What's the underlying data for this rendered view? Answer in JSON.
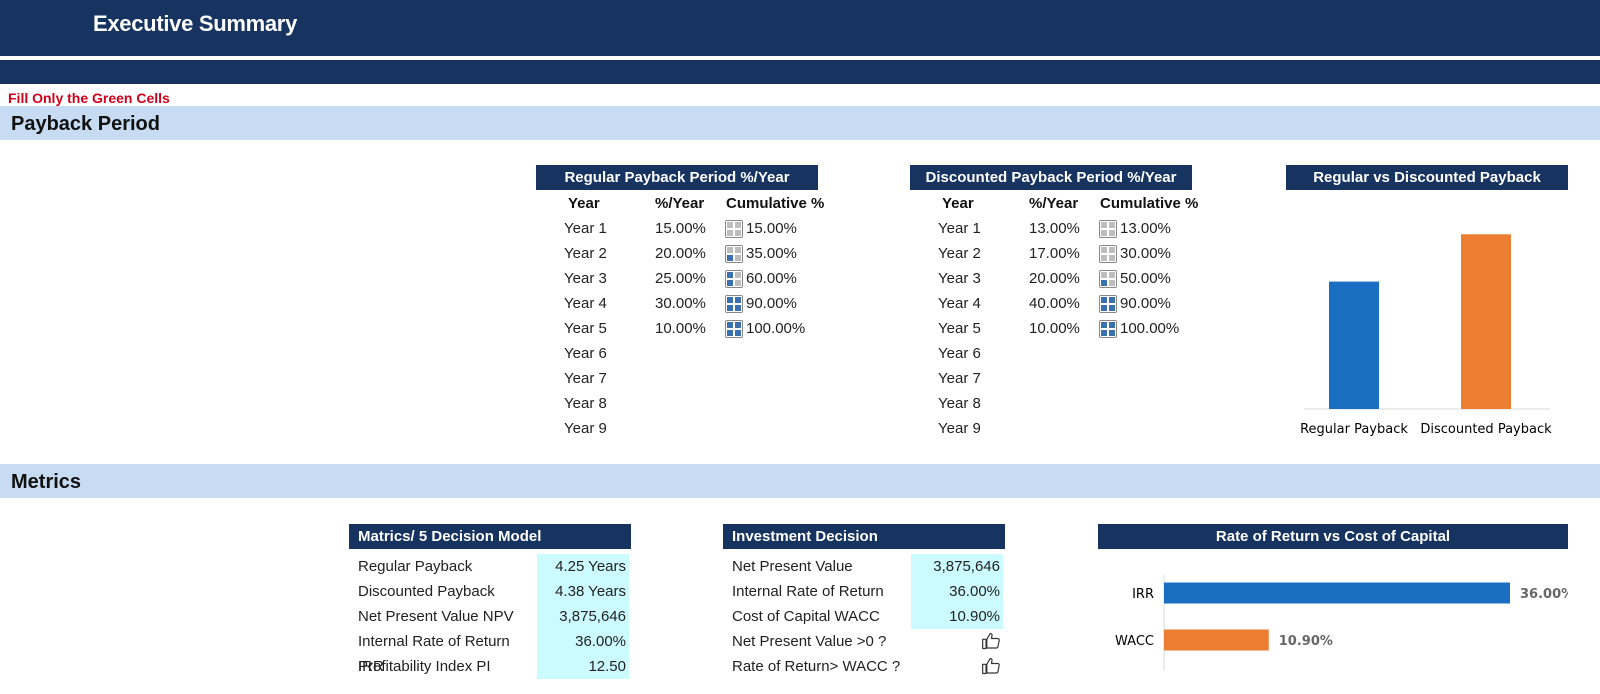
{
  "header": {
    "title": "Executive Summary",
    "fill_note": "Fill Only the Green Cells"
  },
  "sections": {
    "payback": "Payback Period",
    "metrics": "Metrics"
  },
  "regular_table": {
    "title": "Regular Payback Period %/Year",
    "col_year": "Year",
    "col_pct": "%/Year",
    "col_cum": "Cumulative %",
    "rows": [
      {
        "year": "Year 1",
        "pct": "15.00%",
        "cum": "15.00%",
        "quadrants": 0
      },
      {
        "year": "Year 2",
        "pct": "20.00%",
        "cum": "35.00%",
        "quadrants": 1
      },
      {
        "year": "Year 3",
        "pct": "25.00%",
        "cum": "60.00%",
        "quadrants": 2
      },
      {
        "year": "Year 4",
        "pct": "30.00%",
        "cum": "90.00%",
        "quadrants": 4
      },
      {
        "year": "Year 5",
        "pct": "10.00%",
        "cum": "100.00%",
        "quadrants": 4
      },
      {
        "year": "Year 6",
        "pct": "",
        "cum": "",
        "quadrants": -1
      },
      {
        "year": "Year 7",
        "pct": "",
        "cum": "",
        "quadrants": -1
      },
      {
        "year": "Year 8",
        "pct": "",
        "cum": "",
        "quadrants": -1
      },
      {
        "year": "Year 9",
        "pct": "",
        "cum": "",
        "quadrants": -1
      }
    ]
  },
  "discounted_table": {
    "title": "Discounted Payback Period %/Year",
    "col_year": "Year",
    "col_pct": "%/Year",
    "col_cum": "Cumulative %",
    "rows": [
      {
        "year": "Year 1",
        "pct": "13.00%",
        "cum": "13.00%",
        "quadrants": 0
      },
      {
        "year": "Year 2",
        "pct": "17.00%",
        "cum": "30.00%",
        "quadrants": 0
      },
      {
        "year": "Year 3",
        "pct": "20.00%",
        "cum": "50.00%",
        "quadrants": 1
      },
      {
        "year": "Year 4",
        "pct": "40.00%",
        "cum": "90.00%",
        "quadrants": 4
      },
      {
        "year": "Year 5",
        "pct": "10.00%",
        "cum": "100.00%",
        "quadrants": 4
      },
      {
        "year": "Year 6",
        "pct": "",
        "cum": "",
        "quadrants": -1
      },
      {
        "year": "Year 7",
        "pct": "",
        "cum": "",
        "quadrants": -1
      },
      {
        "year": "Year 8",
        "pct": "",
        "cum": "",
        "quadrants": -1
      },
      {
        "year": "Year 9",
        "pct": "",
        "cum": "",
        "quadrants": -1
      }
    ]
  },
  "matrics_table": {
    "title": "Matrics/ 5 Decision Model",
    "rows": [
      {
        "label": "Regular Payback",
        "value": "4.25 Years"
      },
      {
        "label": "Discounted Payback",
        "value": "4.38 Years"
      },
      {
        "label": "Net Present Value NPV",
        "value": "3,875,646"
      },
      {
        "label": "Internal Rate of Return IRR",
        "value": "36.00%"
      },
      {
        "label": "Profitability Index PI",
        "value": "12.50"
      }
    ]
  },
  "investment_table": {
    "title": "Investment Decision",
    "rows": [
      {
        "label": "Net Present Value",
        "value": "3,875,646",
        "kind": "value"
      },
      {
        "label": "Internal Rate of Return",
        "value": "36.00%",
        "kind": "value"
      },
      {
        "label": "Cost of Capital WACC",
        "value": "10.90%",
        "kind": "value"
      },
      {
        "label": "Net Present Value >0 ?",
        "value": "",
        "kind": "thumb"
      },
      {
        "label": "Rate of Return> WACC ?",
        "value": "",
        "kind": "thumb"
      }
    ]
  },
  "chart_data": [
    {
      "type": "bar",
      "title": "Regular vs Discounted Payback",
      "categories": [
        "Regular Payback",
        "Discounted Payback"
      ],
      "values": [
        4.25,
        4.38
      ],
      "colors": [
        "#1a6fc2",
        "#ed7d31"
      ],
      "ylim": [
        3.9,
        4.4
      ]
    },
    {
      "type": "bar",
      "orientation": "horizontal",
      "title": "Rate of Return vs Cost of Capital",
      "categories": [
        "IRR",
        "WACC"
      ],
      "values": [
        36.0,
        10.9
      ],
      "data_labels": [
        "36.00%",
        "10.90%"
      ],
      "colors": [
        "#1a6fc2",
        "#ed7d31"
      ],
      "xlim": [
        0,
        36.0
      ]
    }
  ],
  "colors": {
    "navy": "#17335f",
    "section_band": "#c7dbf2",
    "input_cell": "#ccfbff",
    "note_red": "#d0021b"
  }
}
